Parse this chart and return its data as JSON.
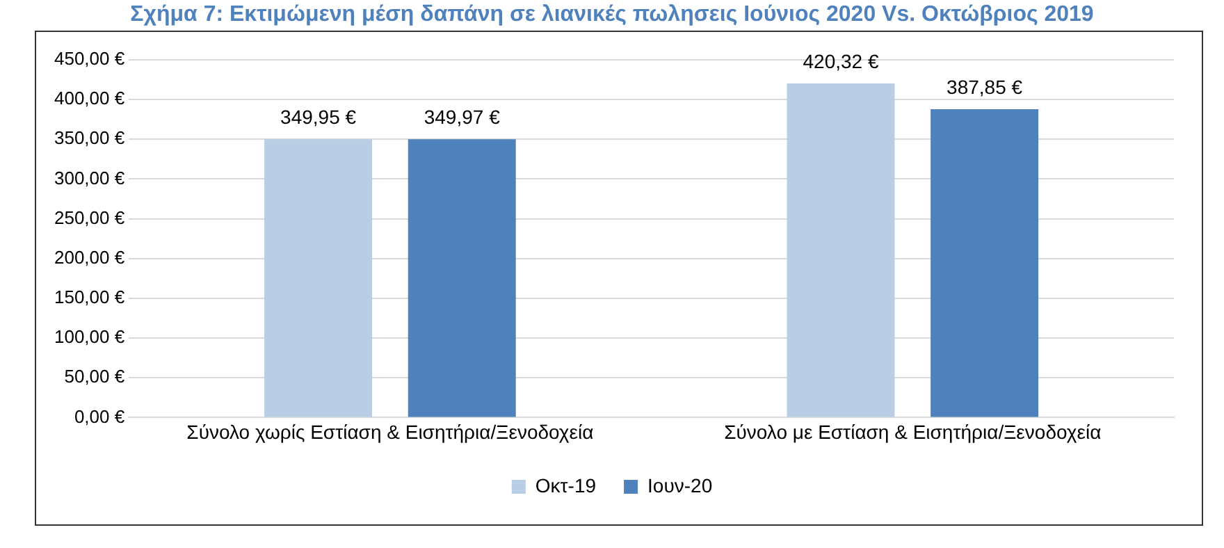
{
  "chart_data": {
    "type": "bar",
    "title": "Σχήμα 7: Εκτιμώμενη μέση δαπάνη σε λιανικές πωλησεις Ιούνιος 2020 Vs. Οκτώβριος 2019",
    "categories": [
      "Σύνολο χωρίς Εστίαση & Εισητήρια/Ξενοδοχεία",
      "Σύνολο με Εστίαση & Εισητήρια/Ξενοδοχεία"
    ],
    "series": [
      {
        "name": "Οκτ-19",
        "color": "#b9cde5",
        "values": [
          349.95,
          420.32
        ],
        "value_labels": [
          "349,95 €",
          "420,32 €"
        ]
      },
      {
        "name": "Ιουν-20",
        "color": "#4f81bd",
        "values": [
          349.97,
          387.85
        ],
        "value_labels": [
          "349,97 €",
          "387,85 €"
        ]
      }
    ],
    "ylim": [
      0,
      450
    ],
    "yticks": [
      {
        "value": 0,
        "label": "0,00 €"
      },
      {
        "value": 50,
        "label": "50,00 €"
      },
      {
        "value": 100,
        "label": "100,00 €"
      },
      {
        "value": 150,
        "label": "150,00 €"
      },
      {
        "value": 200,
        "label": "200,00 €"
      },
      {
        "value": 250,
        "label": "250,00 €"
      },
      {
        "value": 300,
        "label": "300,00 €"
      },
      {
        "value": 350,
        "label": "350,00 €"
      },
      {
        "value": 400,
        "label": "400,00 €"
      },
      {
        "value": 450,
        "label": "450,00 €"
      }
    ],
    "grid": "y",
    "legend": "bottom"
  }
}
